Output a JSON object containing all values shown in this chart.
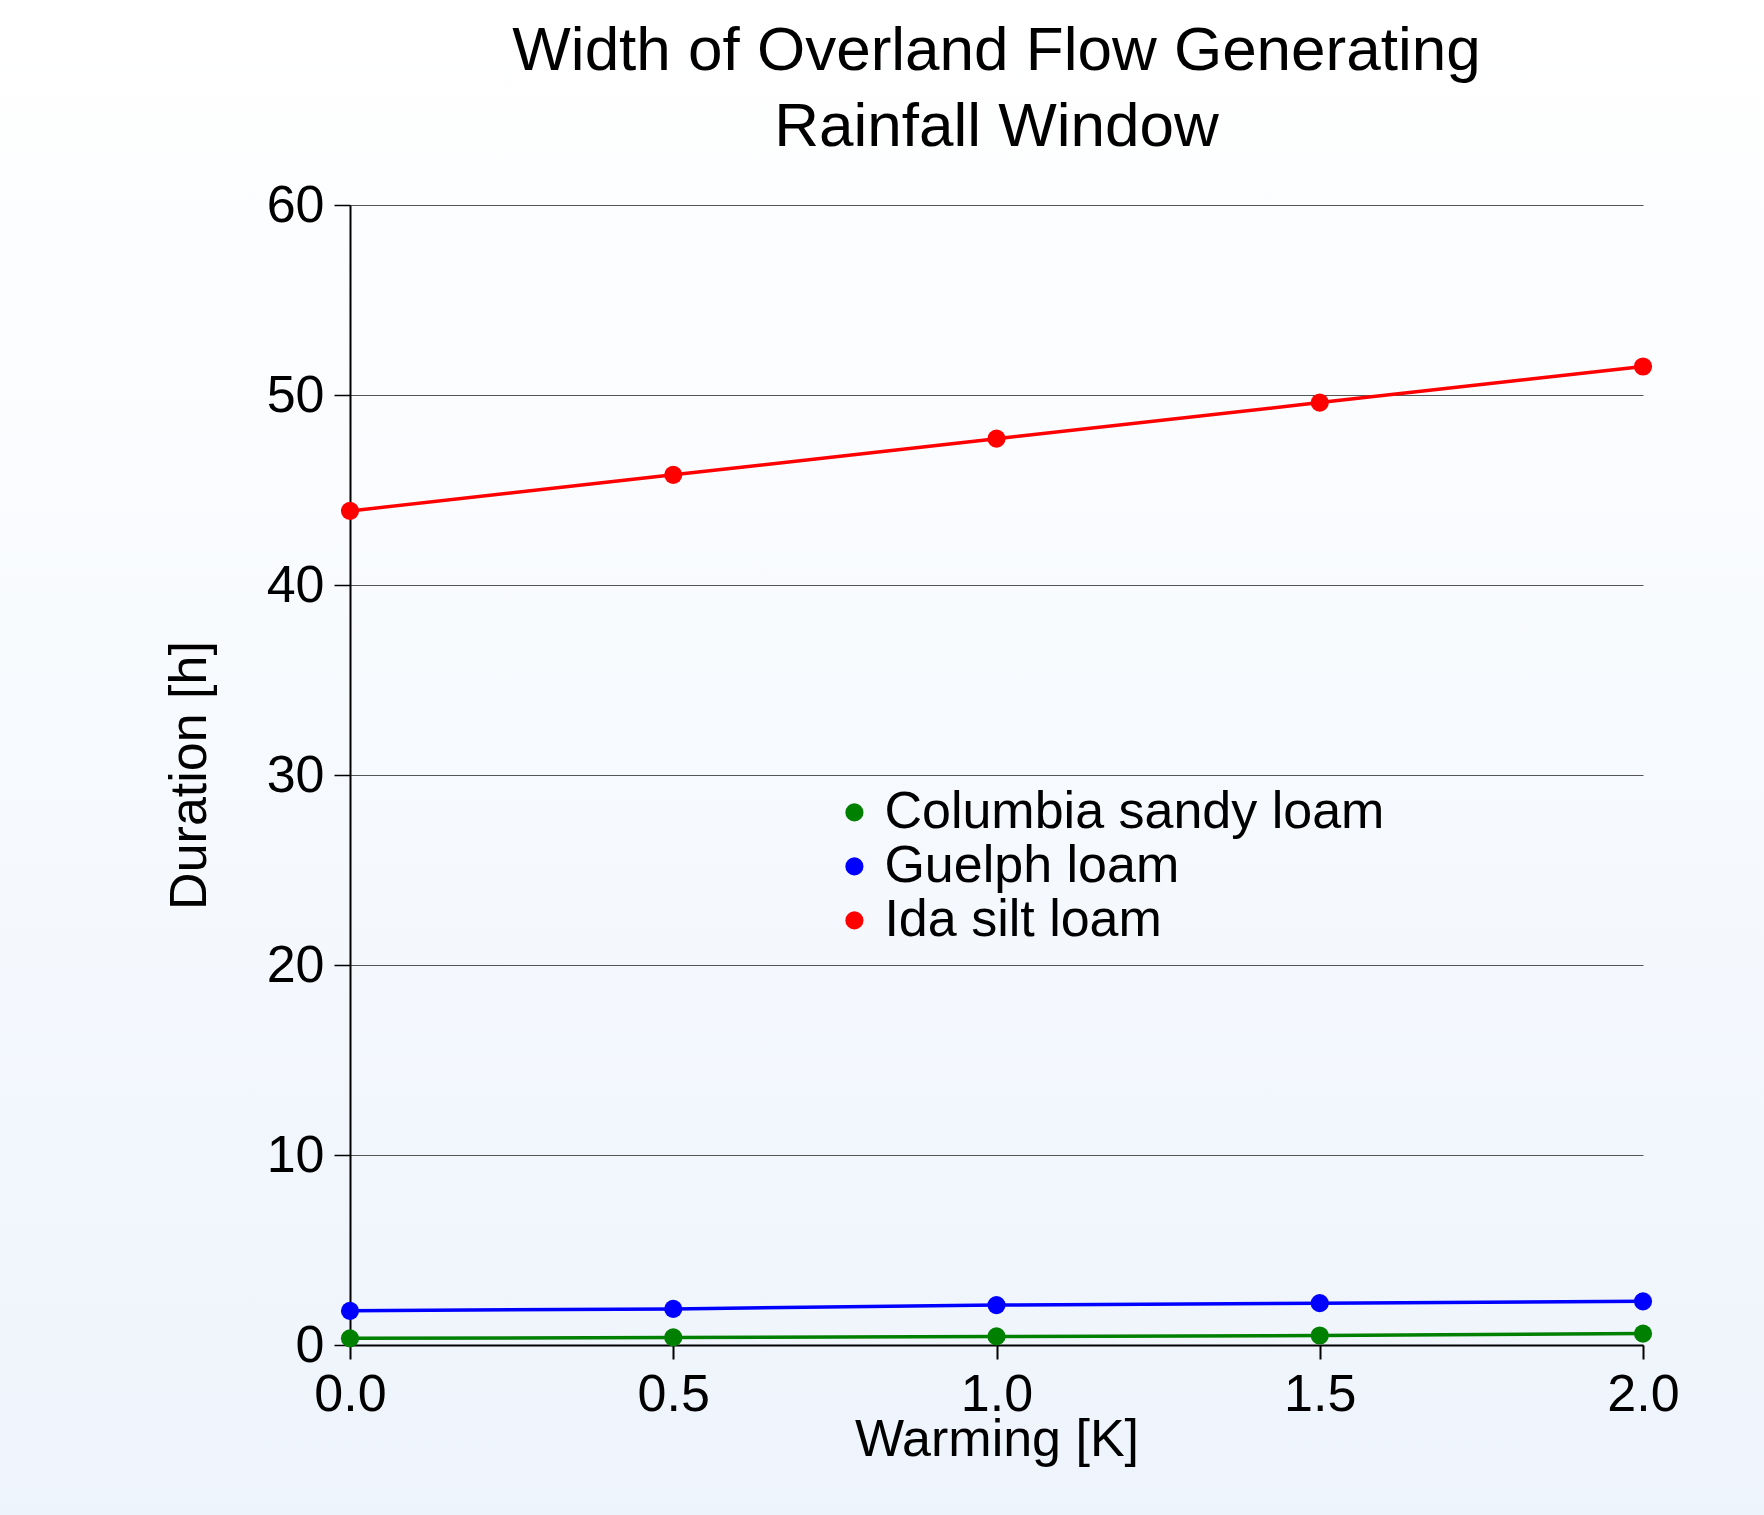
{
  "chart_data": {
    "type": "line",
    "title": "Width of Overland Flow Generating Rainfall Window",
    "xlabel": "Warming [K]",
    "ylabel": "Duration [h]",
    "x": [
      0.0,
      0.5,
      1.0,
      1.5,
      2.0
    ],
    "xlim": [
      0,
      2
    ],
    "xticks": [
      {
        "value": 0,
        "label": "0.0"
      },
      {
        "value": 0.5,
        "label": "0.5"
      },
      {
        "value": 1,
        "label": "1.0"
      },
      {
        "value": 1.5,
        "label": "1.5"
      },
      {
        "value": 2,
        "label": "2.0"
      }
    ],
    "ylim": [
      0,
      60
    ],
    "yticks": [
      0,
      10,
      20,
      30,
      40,
      50,
      60
    ],
    "grid": "y",
    "legend": "right",
    "marker": "circle",
    "line_style": "solid",
    "series": [
      {
        "name": "Columbia sandy loam",
        "color": "#008000",
        "values": [
          0.35,
          0.4,
          0.45,
          0.5,
          0.6
        ]
      },
      {
        "name": "Guelph loam",
        "color": "#0000ff",
        "values": [
          1.8,
          1.9,
          2.1,
          2.2,
          2.3
        ]
      },
      {
        "name": "Ida silt loam",
        "color": "#ff0000",
        "values": [
          43.9,
          45.8,
          47.7,
          49.6,
          51.5
        ]
      }
    ]
  }
}
